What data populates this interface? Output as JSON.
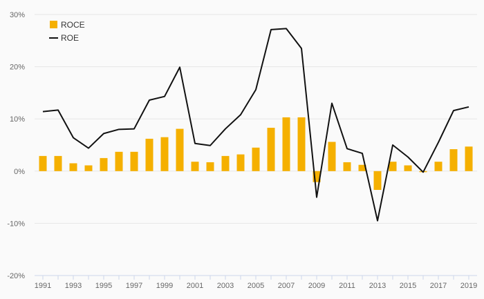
{
  "chart_data": {
    "type": "bar",
    "title": "",
    "xlabel": "",
    "ylabel": "",
    "ylim": [
      -0.2,
      0.3
    ],
    "y_ticks": [
      {
        "value": 0.3,
        "label": "30%"
      },
      {
        "value": 0.2,
        "label": "20%"
      },
      {
        "value": 0.1,
        "label": "10%"
      },
      {
        "value": 0.0,
        "label": "0%"
      },
      {
        "value": -0.1,
        "label": "-10%"
      },
      {
        "value": -0.2,
        "label": "-20%"
      }
    ],
    "grid": true,
    "legend_position": "top-left",
    "categories": [
      1991,
      1992,
      1993,
      1994,
      1995,
      1996,
      1997,
      1998,
      1999,
      2000,
      2001,
      2002,
      2003,
      2004,
      2005,
      2006,
      2007,
      2008,
      2009,
      2010,
      2011,
      2012,
      2013,
      2014,
      2015,
      2016,
      2017,
      2018,
      2019
    ],
    "x_tick_labels": [
      "1991",
      "1993",
      "1995",
      "1997",
      "1999",
      "2001",
      "2003",
      "2005",
      "2007",
      "2009",
      "2011",
      "2013",
      "2015",
      "2017",
      "2019"
    ],
    "series": [
      {
        "name": "ROCE",
        "kind": "bar",
        "color": "#f5b000",
        "values": [
          0.029,
          0.029,
          0.015,
          0.011,
          0.025,
          0.037,
          0.037,
          0.062,
          0.065,
          0.081,
          0.018,
          0.017,
          0.029,
          0.032,
          0.045,
          0.083,
          0.103,
          0.103,
          -0.021,
          0.056,
          0.017,
          0.012,
          -0.036,
          0.018,
          0.011,
          -0.002,
          0.018,
          0.042,
          0.047
        ]
      },
      {
        "name": "ROE",
        "kind": "line",
        "color": "#111111",
        "values": [
          0.114,
          0.117,
          0.064,
          0.044,
          0.072,
          0.08,
          0.081,
          0.136,
          0.143,
          0.199,
          0.053,
          0.049,
          0.081,
          0.108,
          0.156,
          0.271,
          0.273,
          0.235,
          -0.05,
          0.13,
          0.043,
          0.034,
          -0.095,
          0.05,
          0.027,
          -0.002,
          0.055,
          0.116,
          0.123
        ]
      }
    ]
  }
}
